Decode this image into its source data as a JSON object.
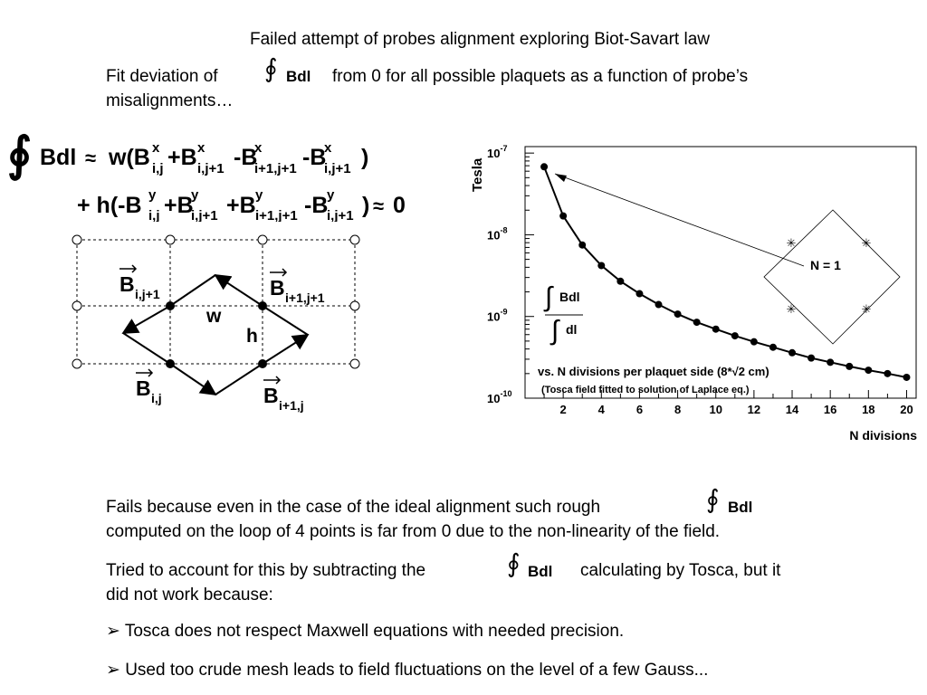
{
  "slide": {
    "title": "Failed attempt of probes alignment exploring Biot-Savart law",
    "intro_pre": "Fit deviation of",
    "intro_post": "from 0 for all possible plaquets as a function of probe’s",
    "intro_line2": "misalignments…",
    "integral_symbol": "∮",
    "integral_label": "Bdl",
    "approx_symbol": "≈",
    "fails_line1": "Fails because even in the case of the ideal alignment such rough",
    "fails_line2": "computed on the loop of 4 points is far from 0 due to the non-linearity of the field.",
    "tried_pre": "Tried to account for this by subtracting the",
    "tried_post": "calculating by Tosca, but it",
    "tried_line2": "did not work because:",
    "bullet_marker": "➢",
    "bullets": [
      "Tosca does not respect Maxwell equations with needed precision.",
      "Used too crude mesh leads to field fluctuations on the level of a few Gauss..."
    ]
  },
  "equation": {
    "w_term": "w(B",
    "h_term": "+ h(-B",
    "zero": "0",
    "sup_x": "x",
    "sup_y": "y",
    "idx_ij": "i,j",
    "idx_ij1": "i,j+1",
    "idx_i1j1": "i+1,j+1",
    "close": ")"
  },
  "diagram": {
    "label_w": "w",
    "label_h": "h",
    "labels": [
      "B",
      "i,j+1",
      "B",
      "i+1,j+1",
      "B",
      "i,j",
      "B",
      "i+1,j"
    ]
  },
  "chart_data": {
    "type": "line",
    "xlabel": "N divisions",
    "ylabel": "Tesla",
    "yscale": "log",
    "ylim": [
      1e-10,
      1.2e-07
    ],
    "xlim": [
      0,
      20.5
    ],
    "x_ticks": [
      2,
      4,
      6,
      8,
      10,
      12,
      14,
      16,
      18,
      20
    ],
    "y_tick_labels": [
      "10^-7",
      "10^-8",
      "10^-9",
      "10^-10"
    ],
    "series": [
      {
        "x": [
          1,
          2,
          3,
          4,
          5,
          6,
          7,
          8,
          9,
          10,
          11,
          12,
          13,
          14,
          15,
          16,
          17,
          18,
          19,
          20
        ],
        "y": [
          6.8e-08,
          1.7e-08,
          7.5e-09,
          4.2e-09,
          2.7e-09,
          1.9e-09,
          1.4e-09,
          1.07e-09,
          8.5e-10,
          7e-10,
          5.8e-10,
          4.9e-10,
          4.2e-10,
          3.6e-10,
          3.1e-10,
          2.75e-10,
          2.45e-10,
          2.2e-10,
          2e-10,
          1.8e-10
        ]
      }
    ],
    "annotation_n1": "N = 1",
    "annotation_line1": "vs. N divisions per plaquet side (8*√2 cm)",
    "annotation_line2": "(Tosca field fitted to solution of Laplace eq.)",
    "ratio_num": "Bdl",
    "ratio_den": "dl",
    "integral_glyph": "∫",
    "sup_base": "10",
    "exponents": [
      "-7",
      "-8",
      "-9",
      "-10"
    ]
  }
}
